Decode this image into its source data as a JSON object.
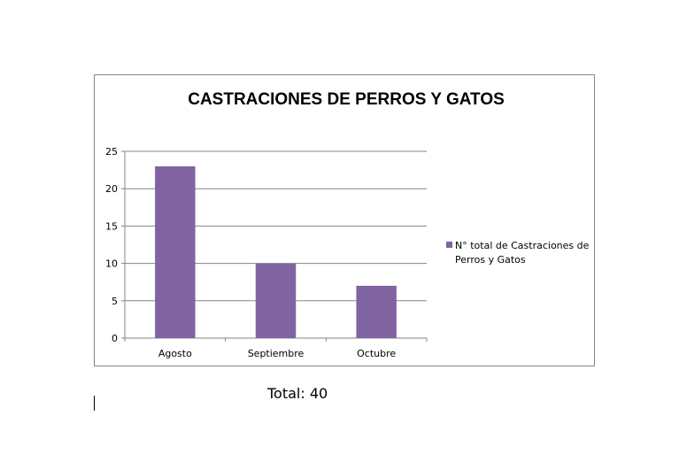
{
  "chart_data": {
    "type": "bar",
    "title": "CASTRACIONES DE PERROS Y GATOS",
    "categories": [
      "Agosto",
      "Septiembre",
      "Octubre"
    ],
    "series": [
      {
        "name": "N° total de Castraciones de Perros y Gatos",
        "values": [
          23,
          10,
          7
        ],
        "color": "#8064A2"
      }
    ],
    "ylim": [
      0,
      25
    ],
    "yticks": [
      0,
      5,
      10,
      15,
      20,
      25
    ],
    "xlabel": "",
    "ylabel": "",
    "grid": true,
    "legend": "right"
  },
  "legend_lines": [
    "N° total de Castraciones de",
    "Perros y Gatos"
  ],
  "footer": {
    "total": "Total: 40"
  }
}
